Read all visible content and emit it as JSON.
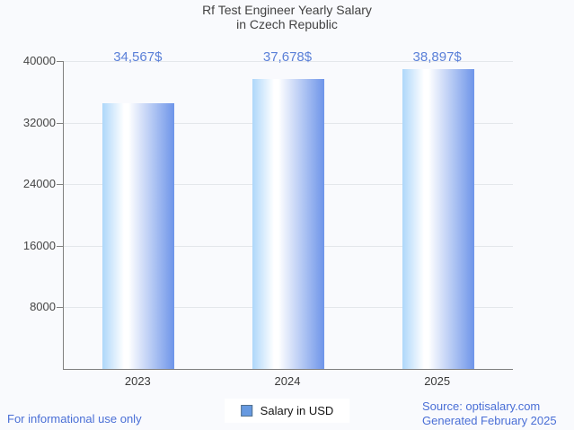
{
  "chart_data": {
    "type": "bar",
    "title": "Rf Test Engineer Yearly Salary in Czech Republic",
    "title_lines": [
      "Rf Test Engineer Yearly Salary",
      "in Czech Republic"
    ],
    "categories": [
      "2023",
      "2024",
      "2025"
    ],
    "series": [
      {
        "name": "Salary in USD",
        "values": [
          34567,
          37678,
          38897
        ]
      }
    ],
    "value_labels": [
      "34,567$",
      "37,678$",
      "38,897$"
    ],
    "xlabel": "",
    "ylabel": "",
    "ylim": [
      0,
      40000
    ],
    "y_ticks": [
      8000,
      16000,
      24000,
      32000,
      40000
    ],
    "grid": true,
    "legend_position": "bottom"
  },
  "legend": {
    "label": "Salary in USD"
  },
  "footer": {
    "disclaimer": "For informational use only",
    "source": "Source: optisalary.com",
    "generated": "Generated February 2025"
  },
  "colors": {
    "background": "#f9fafd",
    "axis": "#808080",
    "gridline": "#e4e7eb",
    "title_text": "#424242",
    "tick_label_text": "#454545",
    "x_label_text": "#3a3a3a",
    "value_label_text": "#5b80d8",
    "footer_text": "#4a6fd6",
    "bar_gradient_left": "#aed7fa",
    "bar_gradient_mid": "#ffffff",
    "bar_gradient_right": "#6e95e9",
    "legend_swatch_fill": "#6699e0",
    "legend_swatch_border": "#54718c",
    "legend_background": "#ffffff"
  }
}
